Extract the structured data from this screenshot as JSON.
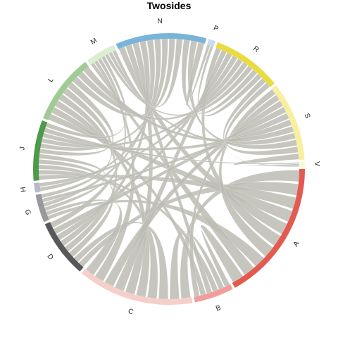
{
  "chart_data": {
    "type": "chord",
    "title": "Twosides",
    "ribbon_color": "#bcbcb4",
    "segments": [
      {
        "label": "A",
        "color": "#e35a50",
        "start_deg": 90,
        "end_deg": 151
      },
      {
        "label": "B",
        "color": "#f09e9b",
        "start_deg": 152,
        "end_deg": 169
      },
      {
        "label": "C",
        "color": "#f7cfca",
        "start_deg": 170,
        "end_deg": 220
      },
      {
        "label": "D",
        "color": "#58585a",
        "start_deg": 221,
        "end_deg": 246
      },
      {
        "label": "G",
        "color": "#98989d",
        "start_deg": 247,
        "end_deg": 259
      },
      {
        "label": "H",
        "color": "#b9b8c8",
        "start_deg": 260,
        "end_deg": 264
      },
      {
        "label": "J",
        "color": "#4e9a4a",
        "start_deg": 265,
        "end_deg": 291
      },
      {
        "label": "L",
        "color": "#a1cb95",
        "start_deg": 292,
        "end_deg": 322
      },
      {
        "label": "M",
        "color": "#d9efcf",
        "start_deg": 323,
        "end_deg": 336
      },
      {
        "label": "N",
        "color": "#7ab4d9",
        "start_deg": 337,
        "end_deg": 16
      },
      {
        "label": "P",
        "color": "#c4dcef",
        "start_deg": 17,
        "end_deg": 20
      },
      {
        "label": "R",
        "color": "#eadb3f",
        "start_deg": 21,
        "end_deg": 51
      },
      {
        "label": "S",
        "color": "#f8ef9f",
        "start_deg": 52,
        "end_deg": 86
      },
      {
        "label": "V",
        "color": "#fbf8d2",
        "start_deg": 87,
        "end_deg": 89
      }
    ],
    "links": [
      [
        "A",
        "C"
      ],
      [
        "A",
        "D"
      ],
      [
        "A",
        "J"
      ],
      [
        "A",
        "L"
      ],
      [
        "A",
        "N"
      ],
      [
        "A",
        "R"
      ],
      [
        "A",
        "S"
      ],
      [
        "A",
        "G"
      ],
      [
        "A",
        "M"
      ],
      [
        "A",
        "B"
      ],
      [
        "B",
        "C"
      ],
      [
        "B",
        "J"
      ],
      [
        "B",
        "N"
      ],
      [
        "B",
        "L"
      ],
      [
        "B",
        "S"
      ],
      [
        "C",
        "D"
      ],
      [
        "C",
        "J"
      ],
      [
        "C",
        "L"
      ],
      [
        "C",
        "N"
      ],
      [
        "C",
        "R"
      ],
      [
        "C",
        "S"
      ],
      [
        "C",
        "M"
      ],
      [
        "C",
        "G"
      ],
      [
        "D",
        "J"
      ],
      [
        "D",
        "L"
      ],
      [
        "D",
        "N"
      ],
      [
        "D",
        "R"
      ],
      [
        "D",
        "S"
      ],
      [
        "D",
        "M"
      ],
      [
        "G",
        "J"
      ],
      [
        "G",
        "N"
      ],
      [
        "G",
        "S"
      ],
      [
        "G",
        "L"
      ],
      [
        "H",
        "N"
      ],
      [
        "H",
        "R"
      ],
      [
        "J",
        "L"
      ],
      [
        "J",
        "N"
      ],
      [
        "J",
        "R"
      ],
      [
        "J",
        "S"
      ],
      [
        "J",
        "V"
      ],
      [
        "J",
        "M"
      ],
      [
        "L",
        "N"
      ],
      [
        "L",
        "R"
      ],
      [
        "L",
        "S"
      ],
      [
        "M",
        "R"
      ],
      [
        "M",
        "S"
      ],
      [
        "M",
        "N"
      ],
      [
        "N",
        "R"
      ],
      [
        "N",
        "S"
      ],
      [
        "N",
        "P"
      ],
      [
        "P",
        "R"
      ],
      [
        "R",
        "S"
      ],
      [
        "S",
        "V"
      ],
      [
        "R",
        "V"
      ]
    ]
  }
}
